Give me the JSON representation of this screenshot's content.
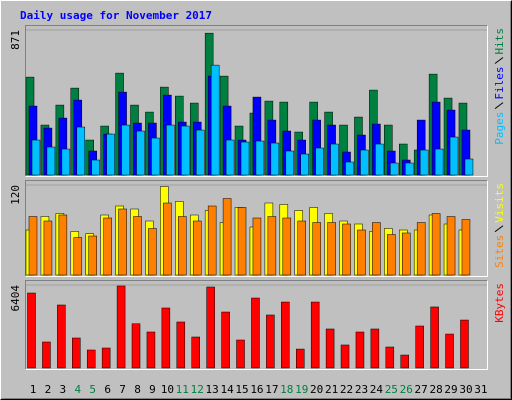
{
  "title": "Daily usage for November 2017",
  "categories": [
    "1",
    "2",
    "3",
    "4",
    "5",
    "6",
    "7",
    "8",
    "9",
    "10",
    "11",
    "12",
    "13",
    "14",
    "15",
    "16",
    "17",
    "18",
    "19",
    "20",
    "21",
    "22",
    "23",
    "24",
    "25",
    "26",
    "27",
    "28",
    "29",
    "30",
    "31"
  ],
  "category_colors": [
    "#000000",
    "#000000",
    "#000000",
    "#008040",
    "#008040",
    "#000000",
    "#000000",
    "#000000",
    "#000000",
    "#000000",
    "#008040",
    "#008040",
    "#000000",
    "#000000",
    "#000000",
    "#000000",
    "#000000",
    "#008040",
    "#008040",
    "#000000",
    "#000000",
    "#000000",
    "#000000",
    "#000000",
    "#008040",
    "#008040",
    "#000000",
    "#000000",
    "#000000",
    "#000000",
    "#000000"
  ],
  "chart_data": [
    {
      "type": "bar",
      "ylim": [
        0,
        871
      ],
      "yticks": [
        871
      ],
      "series": [
        {
          "name": "Hits",
          "color": "#008040",
          "values": [
            588,
            300,
            420,
            522,
            210,
            294,
            612,
            420,
            378,
            528,
            474,
            432,
            852,
            594,
            294,
            372,
            444,
            438,
            258,
            438,
            378,
            300,
            348,
            510,
            300,
            186,
            150,
            606,
            462,
            432,
            null
          ]
        },
        {
          "name": "Files",
          "color": "#0000ff",
          "values": [
            414,
            282,
            342,
            450,
            144,
            246,
            498,
            312,
            312,
            480,
            318,
            318,
            594,
            414,
            210,
            468,
            330,
            264,
            210,
            330,
            300,
            138,
            240,
            306,
            144,
            90,
            330,
            438,
            390,
            270,
            null
          ]
        },
        {
          "name": "Pages",
          "color": "#00c0ff",
          "values": [
            210,
            168,
            156,
            288,
            90,
            246,
            300,
            264,
            222,
            300,
            294,
            270,
            660,
            210,
            198,
            204,
            192,
            144,
            126,
            162,
            186,
            78,
            150,
            186,
            72,
            72,
            150,
            156,
            228,
            96,
            null
          ]
        }
      ]
    },
    {
      "type": "bar",
      "ylim": [
        0,
        120
      ],
      "yticks": [
        120
      ],
      "series": [
        {
          "name": "Visits",
          "color": "#ffff00",
          "values": [
            60,
            78,
            82,
            58,
            55,
            80,
            92,
            88,
            72,
            118,
            98,
            80,
            86,
            70,
            90,
            64,
            96,
            94,
            86,
            90,
            82,
            72,
            68,
            58,
            62,
            60,
            60,
            80,
            68,
            60,
            null
          ]
        },
        {
          "name": "Sites",
          "color": "#ff8000",
          "values": [
            78,
            72,
            80,
            50,
            52,
            76,
            88,
            78,
            62,
            96,
            78,
            72,
            92,
            102,
            90,
            76,
            78,
            76,
            72,
            70,
            70,
            68,
            60,
            70,
            54,
            56,
            70,
            82,
            78,
            74,
            null
          ]
        }
      ]
    },
    {
      "type": "bar",
      "ylim": [
        0,
        6404
      ],
      "yticks": [
        6404
      ],
      "series": [
        {
          "name": "KBytes",
          "color": "#ff0000",
          "values": [
            5786,
            2007,
            4862,
            2315,
            1389,
            1543,
            6327,
            3414,
            2778,
            4630,
            3550,
            2392,
            6250,
            4320,
            2160,
            5400,
            4090,
            5090,
            1460,
            5090,
            3010,
            1776,
            2778,
            3010,
            1620,
            1000,
            3240,
            4710,
            2620,
            3700,
            null
          ]
        }
      ]
    }
  ]
}
